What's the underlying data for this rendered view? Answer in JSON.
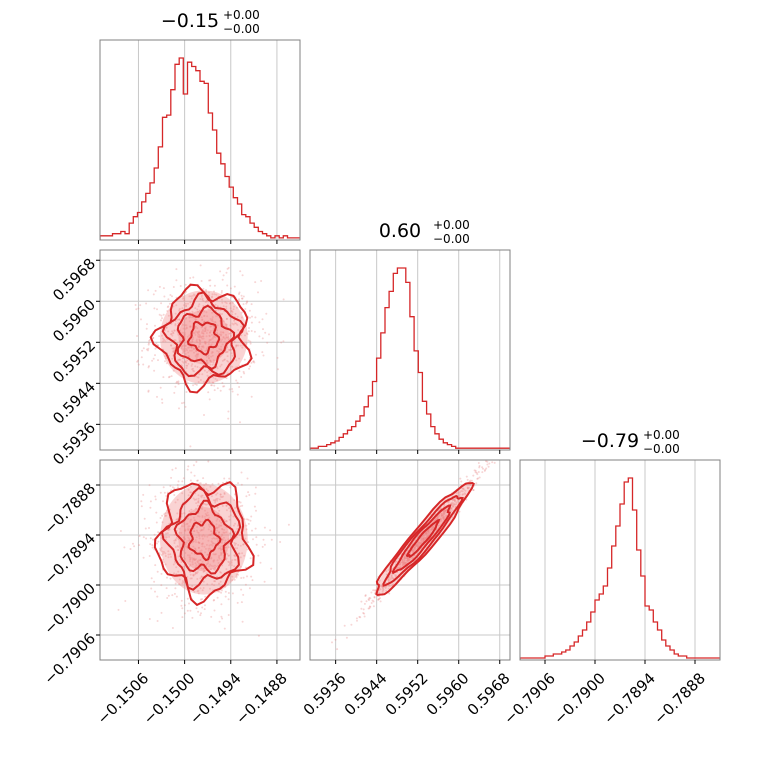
{
  "colors": {
    "accent": "#d62728",
    "grid": "#c8c8c8",
    "frame": "#808080",
    "scatter": "#e88a8a"
  },
  "chart_data": {
    "type": "corner",
    "parameters": [
      {
        "title_main": "−0.15",
        "title_sup": "+0.00",
        "title_sub": "−0.00",
        "range": [
          -0.1511,
          -0.1485
        ],
        "ticks": [
          -0.1506,
          -0.15,
          -0.1494,
          -0.1488
        ],
        "tick_labels": [
          "−0.1506",
          "−0.1500",
          "−0.1494",
          "−0.1488"
        ],
        "hist": {
          "edges_start": -0.1511,
          "edges_step": 5.41667e-05,
          "counts": [
            2,
            2,
            2,
            3,
            3,
            4,
            3,
            8,
            11,
            13,
            18,
            22,
            27,
            34,
            44,
            58,
            59,
            71,
            83,
            86,
            69,
            84,
            82,
            80,
            75,
            74,
            60,
            52,
            41,
            36,
            30,
            25,
            20,
            17,
            12,
            11,
            8,
            6,
            4,
            3,
            2,
            1,
            2,
            1,
            2,
            1,
            1,
            1
          ]
        }
      },
      {
        "title_main": "0.60",
        "title_sup": "+0.00",
        "title_sub": "−0.00",
        "range": [
          0.5931,
          0.597
        ],
        "ticks": [
          0.5936,
          0.5944,
          0.5952,
          0.596,
          0.5968
        ],
        "tick_labels": [
          "0.5936",
          "0.5944",
          "0.5952",
          "0.5960",
          "0.5968"
        ],
        "hist": {
          "edges_start": 0.5931,
          "edges_step": 8.12e-05,
          "counts": [
            1,
            1,
            2,
            2,
            3,
            4,
            5,
            7,
            9,
            11,
            13,
            16,
            19,
            24,
            30,
            38,
            51,
            65,
            79,
            88,
            98,
            101,
            101,
            93,
            74,
            55,
            43,
            27,
            20,
            13,
            9,
            6,
            4,
            3,
            2,
            1,
            1,
            1,
            1,
            1,
            1,
            1,
            1,
            1,
            1,
            1,
            1,
            1
          ]
        }
      },
      {
        "title_main": "−0.79",
        "title_sup": "+0.00",
        "title_sub": "−0.00",
        "range": [
          -0.7909,
          -0.7885
        ],
        "ticks": [
          -0.7906,
          -0.79,
          -0.7894,
          -0.7888
        ],
        "tick_labels": [
          "−0.7906",
          "−0.7900",
          "−0.7894",
          "−0.7888"
        ],
        "hist": {
          "edges_start": -0.7909,
          "edges_step": 5e-05,
          "counts": [
            1,
            1,
            1,
            1,
            1,
            1,
            2,
            2,
            3,
            3,
            4,
            5,
            7,
            9,
            12,
            15,
            19,
            24,
            30,
            33,
            37,
            46,
            57,
            67,
            78,
            89,
            91,
            75,
            55,
            42,
            27,
            25,
            19,
            15,
            10,
            7,
            5,
            3,
            2,
            2,
            1,
            1,
            1,
            1,
            1,
            1,
            1,
            1
          ]
        }
      }
    ],
    "pairs": [
      {
        "row": 1,
        "col": 0,
        "center": [
          -0.14975,
          0.5953
        ],
        "sigma": [
          0.0003,
          0.00048
        ],
        "corr": 0.0
      },
      {
        "row": 2,
        "col": 0,
        "center": [
          -0.14975,
          -0.78945
        ],
        "sigma": [
          0.0003,
          0.00035
        ],
        "corr": 0.0
      },
      {
        "row": 2,
        "col": 1,
        "center": [
          0.5953,
          -0.78945
        ],
        "sigma": [
          0.00048,
          0.00035
        ],
        "corr": 0.985
      }
    ],
    "xlabel": "",
    "ylabel": "",
    "grid": true
  }
}
